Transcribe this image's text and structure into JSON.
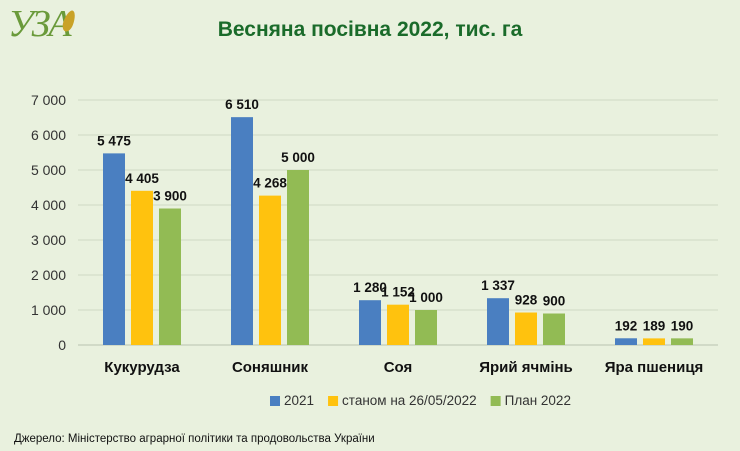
{
  "logo_text": "УЗА",
  "chart_data": {
    "type": "bar",
    "title": "Весняна посівна 2022, тис. га",
    "categories": [
      "Кукурудза",
      "Соняшник",
      "Соя",
      "Ярий ячмінь",
      "Яра пшениця"
    ],
    "series": [
      {
        "name": "2021",
        "color": "#4a7fc1",
        "values": [
          5475,
          6510,
          1280,
          1337,
          192
        ],
        "labels": [
          "5 475",
          "6 510",
          "1 280",
          "1 337",
          "192"
        ]
      },
      {
        "name": "станом на 26/05/2022",
        "color": "#ffc20e",
        "values": [
          4405,
          4268,
          1152,
          928,
          189
        ],
        "labels": [
          "4 405",
          "4 268",
          "1 152",
          "928",
          "189"
        ]
      },
      {
        "name": "План 2022",
        "color": "#92bb54",
        "values": [
          3900,
          5000,
          1000,
          900,
          190
        ],
        "labels": [
          "3 900",
          "5 000",
          "1 000",
          "900",
          "190"
        ]
      }
    ],
    "ylim": [
      0,
      7000
    ],
    "yticks": [
      0,
      1000,
      2000,
      3000,
      4000,
      5000,
      6000,
      7000
    ],
    "ytick_labels": [
      "0",
      "1 000",
      "2 000",
      "3 000",
      "4 000",
      "5 000",
      "6 000",
      "7 000"
    ],
    "grid": true,
    "legend_position": "bottom"
  },
  "source": "Джерело: Міністерство аграрної політики та продовольства України"
}
